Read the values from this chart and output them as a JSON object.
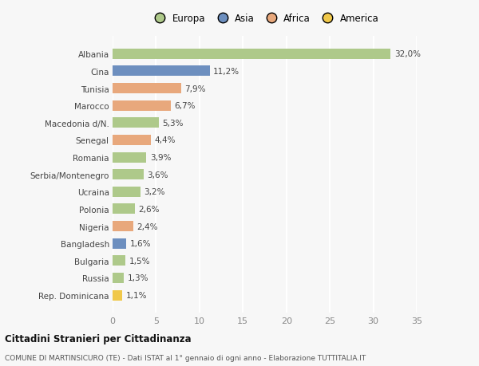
{
  "categories": [
    "Albania",
    "Cina",
    "Tunisia",
    "Marocco",
    "Macedonia d/N.",
    "Senegal",
    "Romania",
    "Serbia/Montenegro",
    "Ucraina",
    "Polonia",
    "Nigeria",
    "Bangladesh",
    "Bulgaria",
    "Russia",
    "Rep. Dominicana"
  ],
  "values": [
    32.0,
    11.2,
    7.9,
    6.7,
    5.3,
    4.4,
    3.9,
    3.6,
    3.2,
    2.6,
    2.4,
    1.6,
    1.5,
    1.3,
    1.1
  ],
  "labels": [
    "32,0%",
    "11,2%",
    "7,9%",
    "6,7%",
    "5,3%",
    "4,4%",
    "3,9%",
    "3,6%",
    "3,2%",
    "2,6%",
    "2,4%",
    "1,6%",
    "1,5%",
    "1,3%",
    "1,1%"
  ],
  "continents": [
    "Europa",
    "Asia",
    "Africa",
    "Africa",
    "Europa",
    "Africa",
    "Europa",
    "Europa",
    "Europa",
    "Europa",
    "Africa",
    "Asia",
    "Europa",
    "Europa",
    "America"
  ],
  "colors": {
    "Europa": "#aec98a",
    "Asia": "#6d8fbf",
    "Africa": "#e8a87c",
    "America": "#f0c84a"
  },
  "xlim": [
    0,
    35
  ],
  "xticks": [
    0,
    5,
    10,
    15,
    20,
    25,
    30,
    35
  ],
  "title": "Cittadini Stranieri per Cittadinanza",
  "subtitle": "COMUNE DI MARTINSICURO (TE) - Dati ISTAT al 1° gennaio di ogni anno - Elaborazione TUTTITALIA.IT",
  "bg_color": "#f7f7f7",
  "grid_color": "#ffffff",
  "bar_height": 0.6,
  "legend_order": [
    "Europa",
    "Asia",
    "Africa",
    "America"
  ]
}
